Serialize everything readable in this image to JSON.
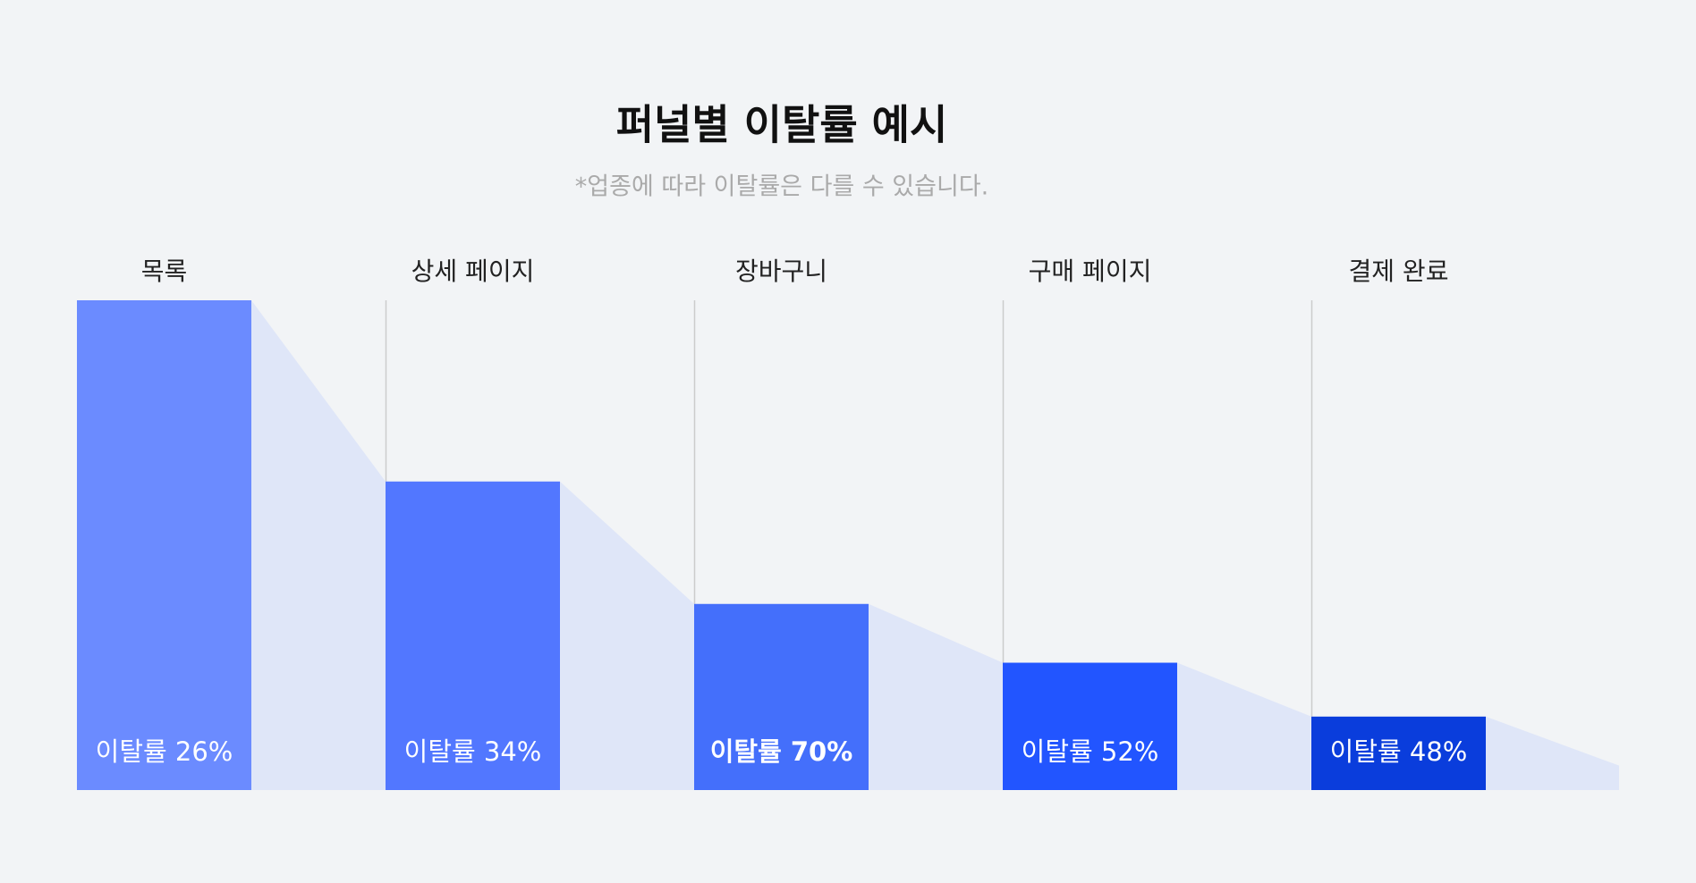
{
  "chart_data": {
    "type": "funnel",
    "title": "퍼널별 이탈률 예시",
    "subtitle": "*업종에 따라 이탈률은 다를 수 있습니다.",
    "categories": [
      "목록",
      "상세 페이지",
      "장바구니",
      "구매 페이지",
      "결제 완료"
    ],
    "values": [
      100,
      63,
      38,
      26,
      15
    ],
    "end_value": 5,
    "bar_labels": [
      "이탈률 26%",
      "이탈률 34%",
      "이탈률 70%",
      "이탈률 52%",
      "이탈률 48%"
    ],
    "highlight": 2,
    "colors": [
      "#6b8bff",
      "#5277ff",
      "#446ffb",
      "#2255ff",
      "#0a3ddc"
    ],
    "area_color": "#dfe6f8",
    "ylim": [
      0,
      100
    ]
  }
}
